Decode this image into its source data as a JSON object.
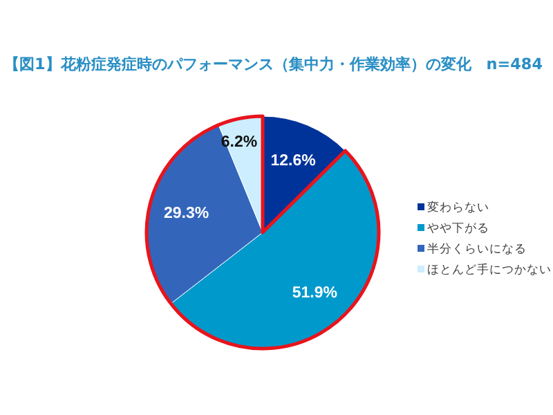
{
  "chart_data": {
    "type": "pie",
    "title": "【図1】花粉症発症時のパフォーマンス（集中力・作業効率）の変化　n=484",
    "categories": [
      "変わらない",
      "やや下がる",
      "半分くらいになる",
      "ほとんど手につかない"
    ],
    "values": [
      12.6,
      51.9,
      29.3,
      6.2
    ],
    "colors": [
      "#003399",
      "#0099cc",
      "#3366bb",
      "#cceeff"
    ],
    "value_labels": [
      "12.6%",
      "51.9%",
      "29.3%",
      "6.2%"
    ],
    "legend": "right"
  }
}
